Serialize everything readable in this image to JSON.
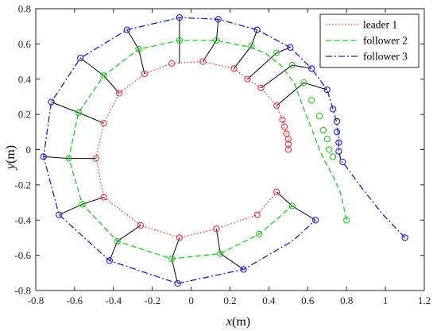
{
  "chart_data": {
    "type": "line",
    "xlabel_var": "x",
    "xlabel_unit": "(m)",
    "ylabel_var": "y",
    "ylabel_unit": "(m)",
    "xlim": [
      -0.8,
      1.2
    ],
    "ylim": [
      -0.8,
      0.8
    ],
    "xticks": [
      "-0.8",
      "-0.6",
      "-0.4",
      "-0.2",
      "0",
      "0.2",
      "0.4",
      "0.6",
      "0.8",
      "1",
      "1.2"
    ],
    "yticks": [
      "0.8",
      "0.6",
      "0.4",
      "0.2",
      "0",
      "-0.2",
      "-0.4",
      "-0.6",
      "-0.8"
    ],
    "xtick_values": [
      -0.8,
      -0.6,
      -0.4,
      -0.2,
      0,
      0.2,
      0.4,
      0.6,
      0.8,
      1.0,
      1.2
    ],
    "ytick_values": [
      0.8,
      0.6,
      0.4,
      0.2,
      0,
      -0.2,
      -0.4,
      -0.6,
      -0.8
    ],
    "legend_position": "top-right",
    "series": [
      {
        "name": "leader 1",
        "color": "#e8383d",
        "dash": "dotted",
        "points": [
          [
            0.5,
            0.0
          ],
          [
            0.5,
            0.03
          ],
          [
            0.5,
            0.06
          ],
          [
            0.49,
            0.09
          ],
          [
            0.48,
            0.13
          ],
          [
            0.47,
            0.17
          ],
          [
            0.44,
            0.25
          ],
          [
            0.36,
            0.35
          ],
          [
            0.29,
            0.4
          ],
          [
            0.22,
            0.46
          ],
          [
            0.06,
            0.5
          ],
          [
            -0.1,
            0.49
          ],
          [
            -0.24,
            0.43
          ],
          [
            -0.37,
            0.32
          ],
          [
            -0.45,
            0.15
          ],
          [
            -0.49,
            -0.05
          ],
          [
            -0.45,
            -0.27
          ],
          [
            -0.26,
            -0.43
          ],
          [
            -0.06,
            -0.5
          ],
          [
            0.13,
            -0.45
          ],
          [
            0.34,
            -0.37
          ],
          [
            0.44,
            -0.24
          ]
        ],
        "markers": [
          [
            0.5,
            0.0
          ],
          [
            0.5,
            0.03
          ],
          [
            0.5,
            0.06
          ],
          [
            0.49,
            0.09
          ],
          [
            0.48,
            0.13
          ],
          [
            0.47,
            0.17
          ],
          [
            0.44,
            0.25
          ],
          [
            0.36,
            0.35
          ],
          [
            0.29,
            0.4
          ],
          [
            0.22,
            0.46
          ],
          [
            0.06,
            0.5
          ],
          [
            -0.1,
            0.49
          ],
          [
            -0.24,
            0.43
          ],
          [
            -0.37,
            0.32
          ],
          [
            -0.45,
            0.15
          ],
          [
            -0.49,
            -0.05
          ],
          [
            -0.45,
            -0.27
          ],
          [
            -0.26,
            -0.43
          ],
          [
            -0.06,
            -0.5
          ],
          [
            0.13,
            -0.45
          ],
          [
            0.34,
            -0.37
          ],
          [
            0.44,
            -0.24
          ]
        ]
      },
      {
        "name": "follower 2",
        "color": "#22cc22",
        "dash": "dashed",
        "points": [
          [
            0.8,
            -0.4
          ],
          [
            0.77,
            -0.25
          ],
          [
            0.73,
            -0.15
          ],
          [
            0.68,
            -0.05
          ],
          [
            0.66,
            0.0
          ],
          [
            0.64,
            0.06
          ],
          [
            0.62,
            0.12
          ],
          [
            0.59,
            0.2
          ],
          [
            0.56,
            0.29
          ],
          [
            0.53,
            0.38
          ],
          [
            0.46,
            0.48
          ],
          [
            0.38,
            0.55
          ],
          [
            0.31,
            0.58
          ],
          [
            0.13,
            0.62
          ],
          [
            -0.06,
            0.62
          ],
          [
            -0.27,
            0.57
          ],
          [
            -0.45,
            0.42
          ],
          [
            -0.58,
            0.21
          ],
          [
            -0.63,
            -0.05
          ],
          [
            -0.56,
            -0.31
          ],
          [
            -0.38,
            -0.52
          ],
          [
            -0.1,
            -0.62
          ],
          [
            0.15,
            -0.59
          ],
          [
            0.35,
            -0.48
          ],
          [
            0.52,
            -0.32
          ]
        ],
        "markers": [
          [
            0.8,
            -0.4
          ],
          [
            0.73,
            -0.04
          ],
          [
            0.71,
            0.0
          ],
          [
            0.7,
            0.06
          ],
          [
            0.68,
            0.11
          ],
          [
            0.66,
            0.19
          ],
          [
            0.62,
            0.28
          ],
          [
            0.58,
            0.38
          ],
          [
            0.52,
            0.48
          ],
          [
            0.44,
            0.55
          ],
          [
            0.31,
            0.59
          ],
          [
            0.13,
            0.62
          ],
          [
            -0.06,
            0.62
          ],
          [
            -0.27,
            0.57
          ],
          [
            -0.45,
            0.42
          ],
          [
            -0.58,
            0.21
          ],
          [
            -0.63,
            -0.05
          ],
          [
            -0.56,
            -0.31
          ],
          [
            -0.38,
            -0.52
          ],
          [
            -0.1,
            -0.62
          ],
          [
            0.15,
            -0.59
          ],
          [
            0.35,
            -0.48
          ],
          [
            0.52,
            -0.32
          ]
        ]
      },
      {
        "name": "follower 3",
        "color": "#1f1fc8",
        "dash": "dashdot",
        "points": [
          [
            1.1,
            -0.5
          ],
          [
            0.98,
            -0.36
          ],
          [
            0.88,
            -0.22
          ],
          [
            0.8,
            -0.1
          ],
          [
            0.77,
            -0.06
          ],
          [
            0.76,
            0.0
          ],
          [
            0.76,
            0.06
          ],
          [
            0.75,
            0.15
          ],
          [
            0.73,
            0.23
          ],
          [
            0.7,
            0.34
          ],
          [
            0.62,
            0.46
          ],
          [
            0.51,
            0.58
          ],
          [
            0.34,
            0.68
          ],
          [
            0.14,
            0.74
          ],
          [
            -0.06,
            0.75
          ],
          [
            -0.33,
            0.68
          ],
          [
            -0.57,
            0.52
          ],
          [
            -0.72,
            0.27
          ],
          [
            -0.76,
            -0.04
          ],
          [
            -0.68,
            -0.37
          ],
          [
            -0.42,
            -0.63
          ],
          [
            -0.07,
            -0.76
          ],
          [
            0.27,
            -0.68
          ],
          [
            0.52,
            -0.52
          ],
          [
            0.64,
            -0.4
          ]
        ],
        "markers": [
          [
            1.1,
            -0.5
          ],
          [
            0.78,
            -0.07
          ],
          [
            0.76,
            -0.01
          ],
          [
            0.76,
            0.04
          ],
          [
            0.75,
            0.1
          ],
          [
            0.75,
            0.16
          ],
          [
            0.73,
            0.23
          ],
          [
            0.7,
            0.34
          ],
          [
            0.62,
            0.46
          ],
          [
            0.51,
            0.58
          ],
          [
            0.34,
            0.68
          ],
          [
            0.14,
            0.74
          ],
          [
            -0.06,
            0.75
          ],
          [
            -0.33,
            0.68
          ],
          [
            -0.57,
            0.52
          ],
          [
            -0.72,
            0.27
          ],
          [
            -0.76,
            -0.04
          ],
          [
            -0.68,
            -0.37
          ],
          [
            -0.42,
            -0.63
          ],
          [
            -0.07,
            -0.76
          ],
          [
            0.27,
            -0.68
          ],
          [
            0.64,
            -0.4
          ]
        ]
      }
    ],
    "connectors": [
      [
        [
          0.44,
          -0.24
        ],
        [
          0.52,
          -0.32
        ],
        [
          0.64,
          -0.4
        ]
      ],
      [
        [
          0.13,
          -0.45
        ],
        [
          0.15,
          -0.59
        ],
        [
          0.27,
          -0.68
        ]
      ],
      [
        [
          -0.06,
          -0.5
        ],
        [
          -0.1,
          -0.62
        ],
        [
          -0.07,
          -0.76
        ]
      ],
      [
        [
          -0.26,
          -0.43
        ],
        [
          -0.38,
          -0.52
        ],
        [
          -0.42,
          -0.63
        ]
      ],
      [
        [
          -0.45,
          -0.27
        ],
        [
          -0.56,
          -0.31
        ],
        [
          -0.68,
          -0.37
        ]
      ],
      [
        [
          -0.49,
          -0.05
        ],
        [
          -0.63,
          -0.05
        ],
        [
          -0.76,
          -0.04
        ]
      ],
      [
        [
          -0.45,
          0.15
        ],
        [
          -0.58,
          0.21
        ],
        [
          -0.72,
          0.27
        ]
      ],
      [
        [
          -0.37,
          0.32
        ],
        [
          -0.45,
          0.42
        ],
        [
          -0.57,
          0.52
        ]
      ],
      [
        [
          -0.24,
          0.43
        ],
        [
          -0.27,
          0.57
        ],
        [
          -0.33,
          0.68
        ]
      ],
      [
        [
          -0.06,
          0.49
        ],
        [
          -0.06,
          0.62
        ],
        [
          -0.06,
          0.75
        ]
      ],
      [
        [
          0.06,
          0.5
        ],
        [
          0.13,
          0.62
        ],
        [
          0.14,
          0.74
        ]
      ],
      [
        [
          0.22,
          0.46
        ],
        [
          0.31,
          0.59
        ],
        [
          0.34,
          0.68
        ]
      ],
      [
        [
          0.29,
          0.4
        ],
        [
          0.44,
          0.55
        ],
        [
          0.51,
          0.58
        ]
      ],
      [
        [
          0.36,
          0.35
        ],
        [
          0.52,
          0.48
        ],
        [
          0.62,
          0.46
        ]
      ],
      [
        [
          0.44,
          0.25
        ],
        [
          0.58,
          0.38
        ],
        [
          0.7,
          0.34
        ]
      ]
    ]
  }
}
